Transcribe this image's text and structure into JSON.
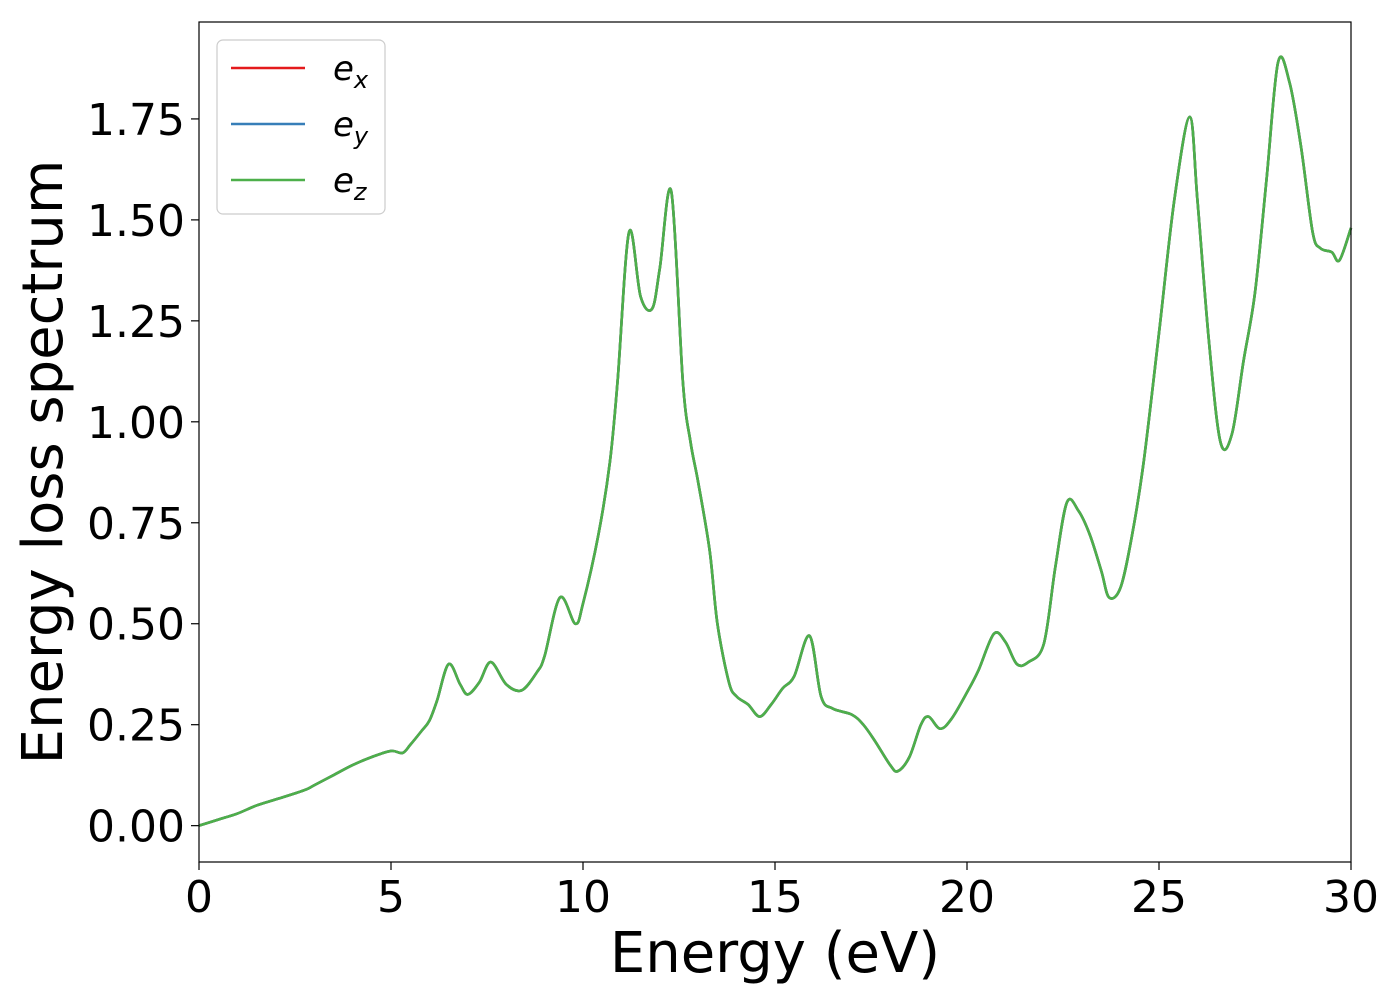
{
  "chart_data": {
    "type": "line",
    "title": "",
    "xlabel": "Energy (eV)",
    "ylabel": "Energy loss spectrum",
    "xlim": [
      0,
      30
    ],
    "ylim": [
      -0.09,
      1.99
    ],
    "xticks": [
      0,
      5,
      10,
      15,
      20,
      25,
      30
    ],
    "xtick_labels": [
      "0",
      "5",
      "10",
      "15",
      "20",
      "25",
      "30"
    ],
    "yticks": [
      0,
      0.25,
      0.5,
      0.75,
      1.0,
      1.25,
      1.5,
      1.75
    ],
    "ytick_labels": [
      "0.00",
      "0.25",
      "0.50",
      "0.75",
      "1.00",
      "1.25",
      "1.50",
      "1.75"
    ],
    "grid": false,
    "legend_position": "top-left",
    "series": [
      {
        "name": "e",
        "subscript": "x",
        "color": "#e41a1c"
      },
      {
        "name": "e",
        "subscript": "y",
        "color": "#377eb8"
      },
      {
        "name": "e",
        "subscript": "z",
        "color": "#4daf4a"
      }
    ],
    "x": [
      0,
      0.5,
      1.0,
      1.5,
      2.0,
      2.5,
      2.8,
      3.0,
      3.5,
      4.0,
      4.5,
      5.0,
      5.3,
      5.5,
      5.8,
      6.0,
      6.2,
      6.5,
      6.8,
      7.0,
      7.3,
      7.6,
      8.0,
      8.4,
      8.8,
      9.0,
      9.4,
      9.8,
      10.0,
      10.4,
      10.7,
      10.9,
      11.2,
      11.5,
      11.8,
      12.0,
      12.3,
      12.6,
      12.8,
      13.0,
      13.3,
      13.5,
      13.8,
      14.0,
      14.3,
      14.6,
      14.9,
      15.2,
      15.5,
      15.9,
      16.2,
      16.5,
      17.0,
      17.3,
      17.6,
      18.0,
      18.2,
      18.5,
      18.8,
      19.0,
      19.3,
      19.6,
      20.0,
      20.3,
      20.7,
      21.0,
      21.3,
      21.6,
      22.0,
      22.3,
      22.6,
      22.9,
      23.2,
      23.5,
      23.7,
      24.0,
      24.3,
      24.6,
      25.0,
      25.4,
      25.8,
      26.0,
      26.3,
      26.6,
      26.9,
      27.2,
      27.5,
      27.8,
      28.1,
      28.4,
      28.7,
      29.0,
      29.2,
      29.5,
      29.7,
      30.0
    ],
    "y": [
      0.0,
      0.015,
      0.03,
      0.05,
      0.065,
      0.08,
      0.09,
      0.1,
      0.125,
      0.15,
      0.17,
      0.185,
      0.18,
      0.2,
      0.235,
      0.26,
      0.31,
      0.4,
      0.35,
      0.325,
      0.355,
      0.405,
      0.35,
      0.335,
      0.38,
      0.42,
      0.565,
      0.5,
      0.55,
      0.72,
      0.9,
      1.1,
      1.47,
      1.31,
      1.28,
      1.38,
      1.57,
      1.1,
      0.95,
      0.85,
      0.68,
      0.5,
      0.355,
      0.32,
      0.3,
      0.27,
      0.3,
      0.34,
      0.37,
      0.47,
      0.32,
      0.29,
      0.275,
      0.25,
      0.21,
      0.15,
      0.135,
      0.17,
      0.25,
      0.27,
      0.24,
      0.265,
      0.33,
      0.385,
      0.475,
      0.455,
      0.4,
      0.405,
      0.45,
      0.64,
      0.8,
      0.78,
      0.72,
      0.63,
      0.565,
      0.59,
      0.72,
      0.9,
      1.22,
      1.55,
      1.755,
      1.55,
      1.2,
      0.95,
      0.97,
      1.15,
      1.32,
      1.6,
      1.89,
      1.84,
      1.68,
      1.47,
      1.43,
      1.42,
      1.4,
      1.48
    ]
  }
}
